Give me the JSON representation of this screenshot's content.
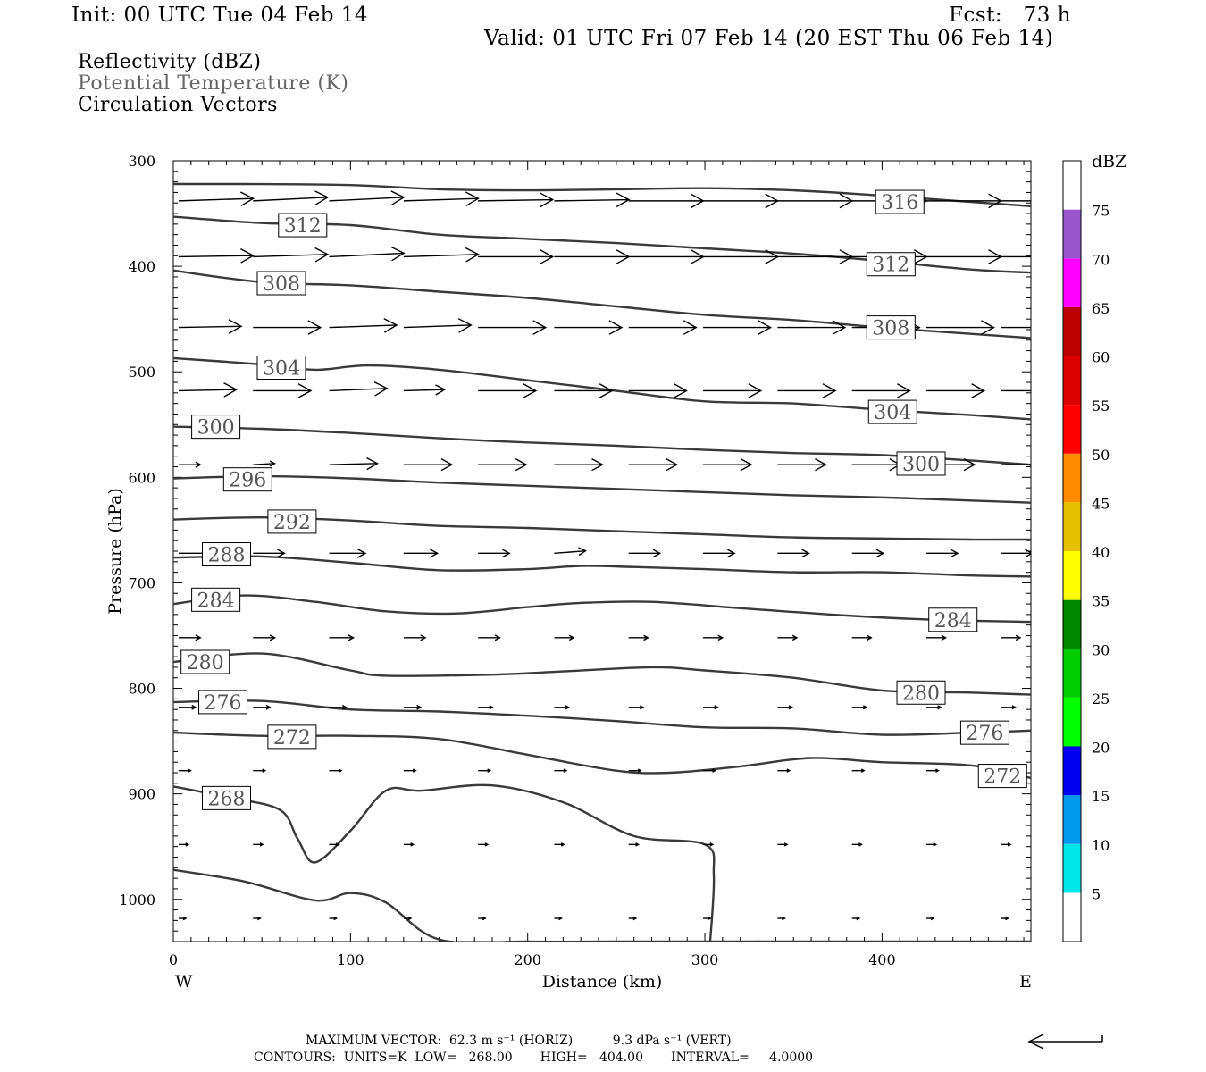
{
  "header": {
    "init": "Init: 00 UTC Tue 04 Feb 14",
    "fcst": "Fcst:   73 h",
    "valid": "Valid: 01 UTC Fri 07 Feb 14 (20 EST Thu 06 Feb 14)"
  },
  "legend_text": {
    "line1": "Reflectivity (dBZ)",
    "line2": "Potential Temperature (K)",
    "line3": "Circulation Vectors"
  },
  "footer": {
    "max_vector": "MAXIMUM VECTOR:  62.3 m s⁻¹ (HORIZ)          9.3 dPa s⁻¹ (VERT)",
    "contours": "CONTOURS:  UNITS=K  LOW=   268.00       HIGH=   404.00       INTERVAL=     4.0000"
  },
  "colors": {
    "contour": "#3a3a3a",
    "potential_temp_text": "#555555",
    "vector": "#000000"
  },
  "chart_data": {
    "type": "line",
    "xlabel": "Distance (km)",
    "ylabel": "Pressure (hPa)",
    "xlim": [
      0,
      484
    ],
    "ylim_hpa": [
      1040,
      300
    ],
    "x_ticks": [
      0,
      100,
      200,
      300,
      400
    ],
    "y_ticks": [
      300,
      400,
      500,
      600,
      700,
      800,
      900,
      1000
    ],
    "x_left_label": "W",
    "x_right_label": "E",
    "colorbar": {
      "unit": "dBZ",
      "ticks": [
        5,
        10,
        15,
        20,
        25,
        30,
        35,
        40,
        45,
        50,
        55,
        60,
        65,
        70,
        75
      ],
      "colors": [
        "#ffffff",
        "#00e5e5",
        "#0099ee",
        "#0000ee",
        "#00ff00",
        "#00cc00",
        "#008800",
        "#ffff00",
        "#e5c000",
        "#ff8c00",
        "#ff0000",
        "#dd0000",
        "#bb0000",
        "#ff00ff",
        "#9955cc",
        "#ffffff"
      ]
    },
    "series": [
      {
        "name": "316",
        "x": [
          0,
          40,
          100,
          150,
          200,
          250,
          300,
          350,
          400,
          450,
          484
        ],
        "y": [
          322,
          322,
          323,
          327,
          328,
          327,
          326,
          328,
          333,
          339,
          343
        ]
      },
      {
        "name": "312",
        "x": [
          0,
          50,
          100,
          150,
          200,
          250,
          300,
          350,
          400,
          450,
          484
        ],
        "y": [
          353,
          359,
          361,
          370,
          374,
          378,
          383,
          388,
          395,
          403,
          406
        ]
      },
      {
        "name": "308",
        "x": [
          0,
          50,
          100,
          150,
          200,
          250,
          300,
          350,
          400,
          450,
          484
        ],
        "y": [
          404,
          415,
          418,
          424,
          430,
          438,
          446,
          451,
          458,
          464,
          468
        ]
      },
      {
        "name": "304",
        "x": [
          0,
          50,
          80,
          110,
          150,
          200,
          250,
          300,
          350,
          400,
          450,
          484
        ],
        "y": [
          487,
          493,
          498,
          494,
          498,
          508,
          518,
          528,
          530,
          536,
          541,
          545
        ]
      },
      {
        "name": "300",
        "x": [
          0,
          50,
          100,
          150,
          200,
          250,
          300,
          350,
          400,
          450,
          484
        ],
        "y": [
          552,
          554,
          558,
          563,
          567,
          570,
          574,
          577,
          579,
          584,
          588
        ]
      },
      {
        "name": "296",
        "x": [
          0,
          50,
          100,
          150,
          200,
          250,
          300,
          350,
          400,
          450,
          484
        ],
        "y": [
          601,
          599,
          601,
          605,
          608,
          611,
          614,
          617,
          619,
          622,
          624
        ]
      },
      {
        "name": "292",
        "x": [
          0,
          50,
          100,
          150,
          200,
          250,
          300,
          350,
          400,
          450,
          484
        ],
        "y": [
          640,
          638,
          641,
          646,
          648,
          651,
          654,
          657,
          658,
          659,
          659
        ]
      },
      {
        "name": "288",
        "x": [
          0,
          50,
          100,
          150,
          200,
          230,
          260,
          300,
          350,
          400,
          450,
          484
        ],
        "y": [
          676,
          675,
          681,
          688,
          687,
          684,
          685,
          687,
          690,
          690,
          693,
          694
        ]
      },
      {
        "name": "284",
        "x": [
          0,
          40,
          80,
          120,
          160,
          200,
          230,
          270,
          320,
          380,
          430,
          484
        ],
        "y": [
          720,
          712,
          718,
          727,
          729,
          723,
          719,
          718,
          724,
          731,
          735,
          737
        ]
      },
      {
        "name": "280",
        "x": [
          0,
          50,
          100,
          120,
          180,
          220,
          270,
          300,
          350,
          400,
          450,
          484
        ],
        "y": [
          775,
          767,
          783,
          788,
          787,
          784,
          780,
          783,
          790,
          802,
          804,
          806
        ]
      },
      {
        "name": "276",
        "x": [
          0,
          50,
          100,
          150,
          200,
          250,
          300,
          350,
          400,
          450,
          484
        ],
        "y": [
          813,
          812,
          820,
          822,
          826,
          831,
          837,
          838,
          844,
          842,
          840
        ]
      },
      {
        "name": "272",
        "x": [
          0,
          50,
          100,
          150,
          200,
          250,
          280,
          320,
          360,
          400,
          450,
          484
        ],
        "y": [
          842,
          845,
          845,
          848,
          863,
          878,
          880,
          874,
          866,
          870,
          873,
          885
        ]
      },
      {
        "name": "268",
        "x": [
          0,
          30,
          60,
          70,
          80,
          100,
          120,
          140,
          180,
          220,
          260,
          300,
          305,
          303
        ],
        "y": [
          893,
          903,
          915,
          942,
          965,
          935,
          897,
          897,
          892,
          908,
          940,
          948,
          977,
          1040
        ]
      },
      {
        "name": "",
        "x": [
          0,
          40,
          80,
          100,
          120,
          150,
          200,
          250,
          300,
          350,
          400,
          484
        ],
        "y": [
          972,
          983,
          1001,
          994,
          1003,
          1038,
          1040,
          1040,
          1040,
          1040,
          1040,
          1040
        ]
      }
    ],
    "contour_labels": [
      {
        "text": "316",
        "x": 410,
        "y": 339
      },
      {
        "text": "312",
        "x": 73,
        "y": 361
      },
      {
        "text": "312",
        "x": 405,
        "y": 398
      },
      {
        "text": "308",
        "x": 61,
        "y": 416
      },
      {
        "text": "308",
        "x": 405,
        "y": 458
      },
      {
        "text": "304",
        "x": 61,
        "y": 496
      },
      {
        "text": "304",
        "x": 406,
        "y": 538
      },
      {
        "text": "300",
        "x": 24,
        "y": 552
      },
      {
        "text": "300",
        "x": 422,
        "y": 587
      },
      {
        "text": "296",
        "x": 42,
        "y": 602
      },
      {
        "text": "292",
        "x": 67,
        "y": 642
      },
      {
        "text": "288",
        "x": 30,
        "y": 673
      },
      {
        "text": "284",
        "x": 24,
        "y": 716
      },
      {
        "text": "284",
        "x": 440,
        "y": 735
      },
      {
        "text": "280",
        "x": 18,
        "y": 775
      },
      {
        "text": "280",
        "x": 422,
        "y": 804
      },
      {
        "text": "276",
        "x": 28,
        "y": 813
      },
      {
        "text": "276",
        "x": 458,
        "y": 842
      },
      {
        "text": "272",
        "x": 67,
        "y": 846
      },
      {
        "text": "272",
        "x": 468,
        "y": 883
      },
      {
        "text": "268",
        "x": 30,
        "y": 904
      }
    ],
    "vectors": {
      "x_km": [
        3,
        45,
        88,
        130,
        172,
        215,
        257,
        299,
        341,
        383,
        425,
        467
      ],
      "levels": [
        {
          "p": 338,
          "u": [
            62,
            62,
            62,
            62,
            62,
            62,
            62,
            62,
            62,
            62,
            62,
            62
          ],
          "v": [
            -2,
            -3,
            -3,
            -2,
            -1,
            -1,
            0,
            0,
            0,
            0,
            0,
            0
          ]
        },
        {
          "p": 391,
          "u": [
            62,
            62,
            62,
            62,
            62,
            62,
            62,
            62,
            62,
            62,
            62,
            62
          ],
          "v": [
            -1,
            -2,
            -3,
            -2,
            0,
            0,
            0,
            0,
            0,
            0,
            0,
            0
          ]
        },
        {
          "p": 458,
          "u": [
            52,
            56,
            56,
            56,
            56,
            56,
            56,
            56,
            56,
            56,
            56,
            56
          ],
          "v": [
            -1,
            0,
            -2,
            -2,
            0,
            0,
            0,
            0,
            0,
            0,
            0,
            0
          ]
        },
        {
          "p": 518,
          "u": [
            48,
            48,
            48,
            34,
            48,
            48,
            48,
            48,
            48,
            48,
            48,
            48
          ],
          "v": [
            -1,
            0,
            -2,
            -1,
            0,
            0,
            0,
            0,
            0,
            0,
            0,
            0
          ]
        },
        {
          "p": 588,
          "u": [
            18,
            18,
            40,
            40,
            40,
            40,
            40,
            40,
            40,
            40,
            40,
            40
          ],
          "v": [
            0,
            -1,
            -1,
            0,
            0,
            0,
            0,
            0,
            0,
            0,
            0,
            0
          ]
        },
        {
          "p": 672,
          "u": [
            26,
            26,
            30,
            28,
            26,
            26,
            26,
            26,
            26,
            26,
            26,
            26
          ],
          "v": [
            0,
            0,
            0,
            0,
            0,
            -2,
            0,
            0,
            0,
            0,
            0,
            0
          ]
        },
        {
          "p": 752,
          "u": [
            18,
            18,
            20,
            18,
            18,
            16,
            16,
            16,
            16,
            16,
            16,
            16
          ],
          "v": [
            0,
            0,
            0,
            0,
            0,
            0,
            0,
            0,
            0,
            0,
            0,
            0
          ]
        },
        {
          "p": 818,
          "u": [
            14,
            14,
            14,
            14,
            12,
            12,
            12,
            12,
            12,
            12,
            12,
            12
          ],
          "v": [
            0,
            0,
            0,
            0,
            0,
            0,
            0,
            0,
            0,
            0,
            0,
            0
          ]
        },
        {
          "p": 878,
          "u": [
            10,
            10,
            10,
            10,
            10,
            10,
            10,
            10,
            10,
            10,
            10,
            10
          ],
          "v": [
            0,
            0,
            0,
            0,
            0,
            0,
            0,
            0,
            0,
            0,
            0,
            0
          ]
        },
        {
          "p": 948,
          "u": [
            8,
            8,
            8,
            8,
            8,
            8,
            8,
            8,
            8,
            8,
            8,
            8
          ],
          "v": [
            0,
            0,
            0,
            0,
            0,
            0,
            0,
            0,
            0,
            0,
            0,
            0
          ]
        },
        {
          "p": 1018,
          "u": [
            6,
            6,
            6,
            6,
            6,
            6,
            6,
            6,
            6,
            6,
            6,
            6
          ],
          "v": [
            0,
            0,
            0,
            0,
            0,
            0,
            0,
            0,
            0,
            0,
            0,
            0
          ]
        }
      ]
    }
  }
}
